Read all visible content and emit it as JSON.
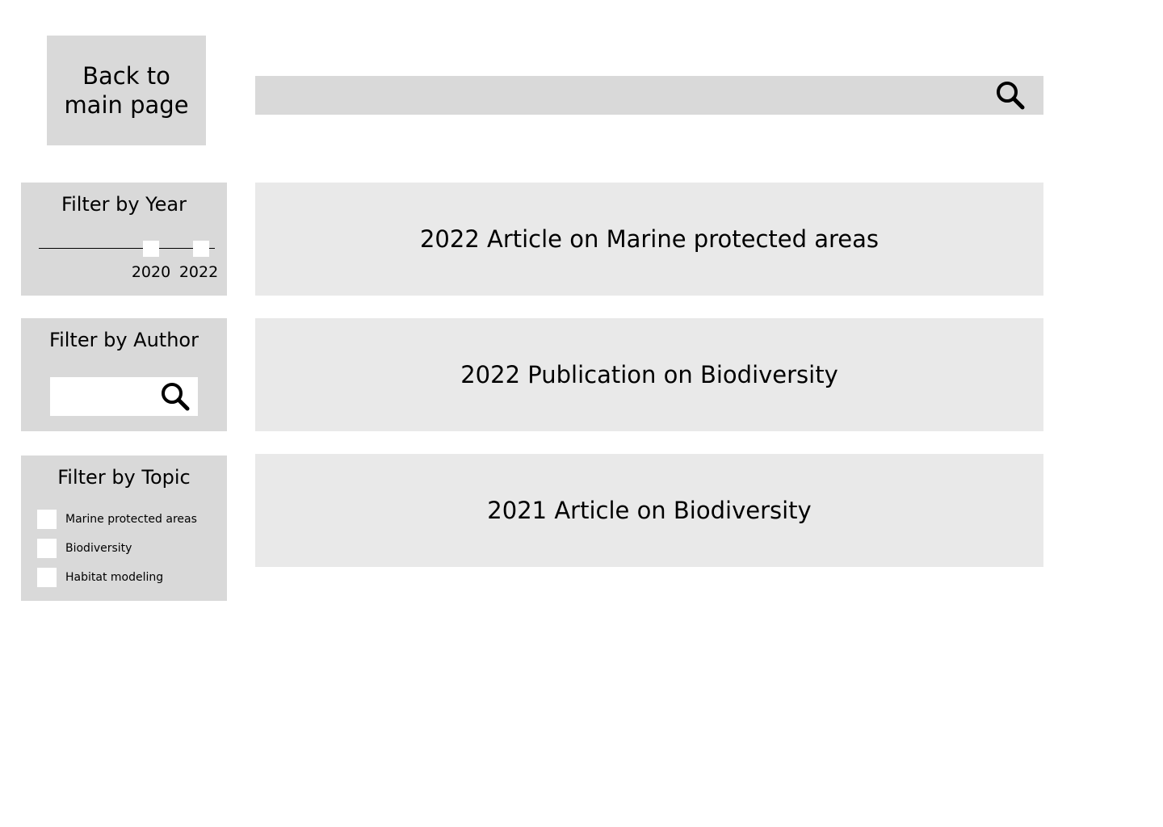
{
  "back_button": {
    "label": "Back to main page"
  },
  "search": {
    "value": "",
    "placeholder": "",
    "icon": "search-icon"
  },
  "filters": {
    "year": {
      "title": "Filter by Year",
      "range_start": "2020",
      "range_end": "2022"
    },
    "author": {
      "title": "Filter by Author",
      "value": "",
      "placeholder": "",
      "icon": "search-icon"
    },
    "topic": {
      "title": "Filter by Topic",
      "options": [
        {
          "label": "Marine protected areas",
          "checked": false
        },
        {
          "label": "Biodiversity",
          "checked": false
        },
        {
          "label": "Habitat modeling",
          "checked": false
        }
      ]
    }
  },
  "results": [
    {
      "title": "2022 Article on Marine protected areas"
    },
    {
      "title": "2022 Publication on Biodiversity"
    },
    {
      "title": "2021 Article on Biodiversity"
    }
  ],
  "colors": {
    "panel": "#d9d9d9",
    "card": "#e9e9e9",
    "background": "#ffffff",
    "text": "#000000"
  }
}
